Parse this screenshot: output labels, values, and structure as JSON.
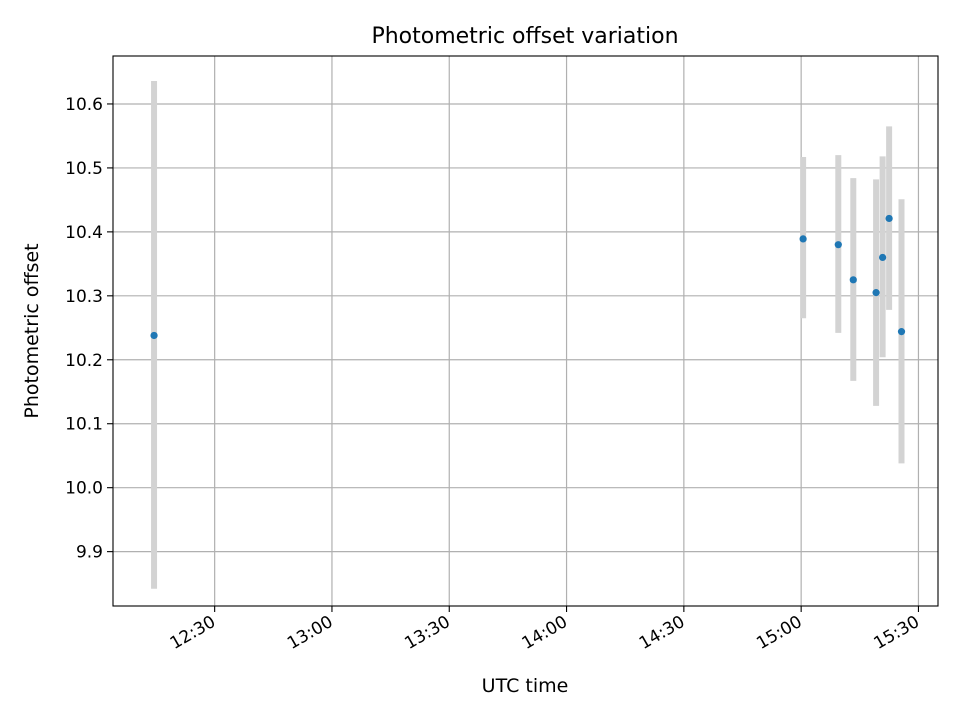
{
  "chart_data": {
    "type": "scatter",
    "title": "Photometric offset variation",
    "xlabel": "UTC time",
    "ylabel": "Photometric offset",
    "x_unit": "time of day (UTC)",
    "xlim": [
      "12:04",
      "15:35"
    ],
    "ylim": [
      9.815,
      10.675
    ],
    "x_ticks": [
      "12:30",
      "13:00",
      "13:30",
      "14:00",
      "14:30",
      "15:00",
      "15:30"
    ],
    "y_ticks": [
      9.9,
      10.0,
      10.1,
      10.2,
      10.3,
      10.4,
      10.5,
      10.6
    ],
    "grid": true,
    "series": [
      {
        "marker_color": "#1f77b4",
        "errorbar_color": "#d3d3d3",
        "points": [
          {
            "x": "12:14:30",
            "y": 10.238,
            "ylow": 9.842,
            "yhigh": 10.636
          },
          {
            "x": "15:00:30",
            "y": 10.389,
            "ylow": 10.265,
            "yhigh": 10.517
          },
          {
            "x": "15:09:30",
            "y": 10.38,
            "ylow": 10.242,
            "yhigh": 10.52
          },
          {
            "x": "15:13:20",
            "y": 10.325,
            "ylow": 10.167,
            "yhigh": 10.484
          },
          {
            "x": "15:19:10",
            "y": 10.305,
            "ylow": 10.128,
            "yhigh": 10.482
          },
          {
            "x": "15:20:50",
            "y": 10.36,
            "ylow": 10.204,
            "yhigh": 10.518
          },
          {
            "x": "15:22:30",
            "y": 10.421,
            "ylow": 10.278,
            "yhigh": 10.565
          },
          {
            "x": "15:25:40",
            "y": 10.244,
            "ylow": 10.038,
            "yhigh": 10.451
          }
        ]
      }
    ]
  }
}
